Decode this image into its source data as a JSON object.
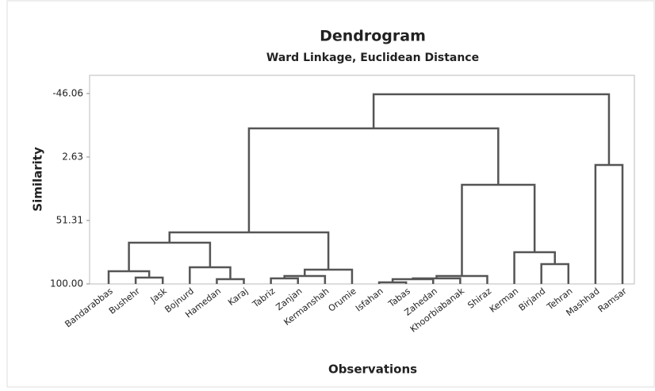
{
  "chart_data": {
    "type": "dendrogram",
    "title": "Dendrogram",
    "subtitle": "Ward Linkage, Euclidean Distance",
    "x_label": "Observations",
    "y_label": "Similarity",
    "categories": [
      "Bandarabbas",
      "Bushehr",
      "Jask",
      "Bojnurd",
      "Hamedan",
      "Karaj",
      "Tabriz",
      "Zanjan",
      "Kermanshah",
      "Orumie",
      "Isfahan",
      "Tabas",
      "Zahedan",
      "Khoorbiabanak",
      "Shiraz",
      "Kerman",
      "Birjand",
      "Tehran",
      "Mashhad",
      "Ramsar"
    ],
    "merges": [
      {
        "left": 1,
        "right": 2,
        "height": 95.13
      },
      {
        "left": 0,
        "right": 20,
        "height": 90.26
      },
      {
        "left": 4,
        "right": 5,
        "height": 96.35
      },
      {
        "left": 3,
        "right": 22,
        "height": 87.22
      },
      {
        "left": 21,
        "right": 23,
        "height": 68.35
      },
      {
        "left": 6,
        "right": 7,
        "height": 95.74
      },
      {
        "left": 25,
        "right": 8,
        "height": 93.91
      },
      {
        "left": 26,
        "right": 9,
        "height": 89.05
      },
      {
        "left": 24,
        "right": 27,
        "height": 60.44
      },
      {
        "left": 10,
        "right": 11,
        "height": 98.78
      },
      {
        "left": 29,
        "right": 12,
        "height": 96.35
      },
      {
        "left": 30,
        "right": 13,
        "height": 95.74
      },
      {
        "left": 31,
        "right": 14,
        "height": 93.91
      },
      {
        "left": 16,
        "right": 17,
        "height": 84.79
      },
      {
        "left": 15,
        "right": 33,
        "height": 75.66
      },
      {
        "left": 32,
        "right": 34,
        "height": 23.93
      },
      {
        "left": 28,
        "right": 35,
        "height": -19.29
      },
      {
        "left": 18,
        "right": 19,
        "height": 8.71
      },
      {
        "left": 36,
        "right": 37,
        "height": -45.46
      }
    ],
    "color": "#555555",
    "ylim": [
      100,
      -60
    ],
    "yticks": [
      -46.06,
      2.63,
      51.31,
      {
        "value": 100,
        "label": "100.00"
      }
    ]
  }
}
